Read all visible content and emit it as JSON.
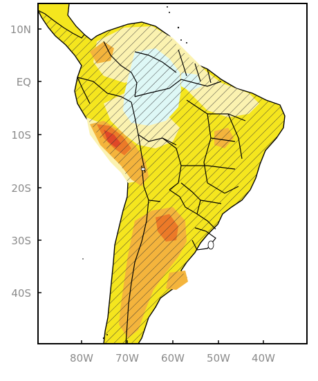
{
  "map": {
    "lat_labels": [
      "10N",
      "EQ",
      "10S",
      "20S",
      "30S",
      "40S"
    ],
    "lon_labels": [
      "80W",
      "70W",
      "60W",
      "50W",
      "40W"
    ],
    "extent": {
      "lon_min": -90,
      "lon_max": -30,
      "lat_min": -50,
      "lat_max": 15
    },
    "colors": {
      "ocean": "#ffffff",
      "land_yellow": "#f5e61e",
      "land_light": "#fbf2b0",
      "land_pale_cyan": "#def8f6",
      "land_orange": "#f4b43c",
      "land_dark_orange": "#ec7a28",
      "land_red": "#e04828",
      "hatch": "#333333",
      "frame": "#000000"
    }
  }
}
